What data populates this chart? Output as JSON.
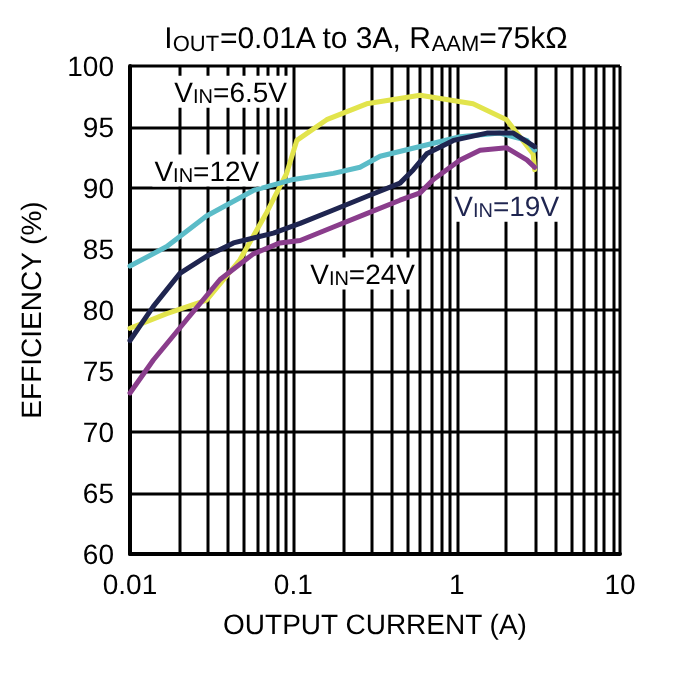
{
  "chart_data": {
    "type": "line",
    "title": "I$_{OUT}$=0.01A to 3A, R$_{AAM}$=75kΩ",
    "xlabel": "OUTPUT CURRENT (A)",
    "ylabel": "EFFICIENCY (%)",
    "log": "x",
    "grid": true,
    "legend": false,
    "marker": "none",
    "line_style": "solid",
    "xlim": [
      0.01,
      10
    ],
    "xticks": [
      0.01,
      {
        "value": 0.02,
        "label": null
      },
      {
        "value": 0.03,
        "label": null
      },
      {
        "value": 0.04,
        "label": null
      },
      {
        "value": 0.05,
        "label": null
      },
      {
        "value": 0.06,
        "label": null
      },
      {
        "value": 0.07,
        "label": null
      },
      {
        "value": 0.08,
        "label": null
      },
      {
        "value": 0.09,
        "label": null
      },
      0.1,
      {
        "value": 0.2,
        "label": null
      },
      {
        "value": 0.3,
        "label": null
      },
      {
        "value": 0.4,
        "label": null
      },
      {
        "value": 0.5,
        "label": null
      },
      {
        "value": 0.6,
        "label": null
      },
      {
        "value": 0.7,
        "label": null
      },
      {
        "value": 0.8,
        "label": null
      },
      {
        "value": 0.9,
        "label": null
      },
      1,
      {
        "value": 2,
        "label": null
      },
      {
        "value": 3,
        "label": null
      },
      {
        "value": 4,
        "label": null
      },
      {
        "value": 5,
        "label": null
      },
      {
        "value": 6,
        "label": null
      },
      {
        "value": 7,
        "label": null
      },
      {
        "value": 8,
        "label": null
      },
      {
        "value": 9,
        "label": null
      },
      10
    ],
    "ylim": [
      60,
      100
    ],
    "yticks": [
      60,
      65,
      70,
      75,
      80,
      85,
      90,
      95,
      100
    ],
    "series": [
      {
        "name": "V$_{IN}$=6.5V",
        "color": "#e2e44c",
        "x": [
          0.01,
          0.0168,
          0.0294,
          0.047,
          0.0687,
          0.091,
          0.105,
          0.16,
          0.281,
          0.597,
          1.26,
          2.02,
          2.94,
          3
        ],
        "values": [
          78.5,
          79.7,
          80.8,
          84.1,
          88,
          91.2,
          93.9,
          95.6,
          96.9,
          97.6,
          96.9,
          95.6,
          92.8,
          91.5
        ]
      },
      {
        "name": "V$_{IN}$=12V",
        "color": "#5bbcc8",
        "x": [
          0.01,
          0.0168,
          0.0294,
          0.0569,
          0.1,
          0.176,
          0.256,
          0.34,
          0.597,
          1.05,
          1.84,
          2.69,
          3
        ],
        "values": [
          83.6,
          85.2,
          87.7,
          89.8,
          90.7,
          91.2,
          91.7,
          92.6,
          93.4,
          94.2,
          94.5,
          93.9,
          93.1
        ]
      },
      {
        "name": "V$_{IN}$=19V",
        "color": "#1f2550",
        "x": [
          0.01,
          0.0139,
          0.0202,
          0.0294,
          0.043,
          0.0755,
          0.11,
          0.176,
          0.281,
          0.45,
          0.543,
          0.655,
          0.955,
          1.53,
          2.22,
          3
        ],
        "values": [
          77.5,
          80.3,
          83,
          84.4,
          85.5,
          86.3,
          87.1,
          88.2,
          89.3,
          90.4,
          91.5,
          92.8,
          93.9,
          94.5,
          94.5,
          93.4
        ]
      },
      {
        "name": "V$_{IN}$=24V",
        "color": "#8a3d8c",
        "x": [
          0.01,
          0.0139,
          0.0222,
          0.0356,
          0.0569,
          0.0828,
          0.11,
          0.176,
          0.281,
          0.45,
          0.597,
          0.72,
          1.05,
          1.39,
          2.02,
          2.69,
          3
        ],
        "values": [
          73.2,
          75.9,
          79.2,
          82.5,
          84.6,
          85.5,
          85.7,
          86.8,
          87.9,
          89,
          89.6,
          90.7,
          92.3,
          93.1,
          93.3,
          92.3,
          91.7
        ]
      }
    ]
  }
}
